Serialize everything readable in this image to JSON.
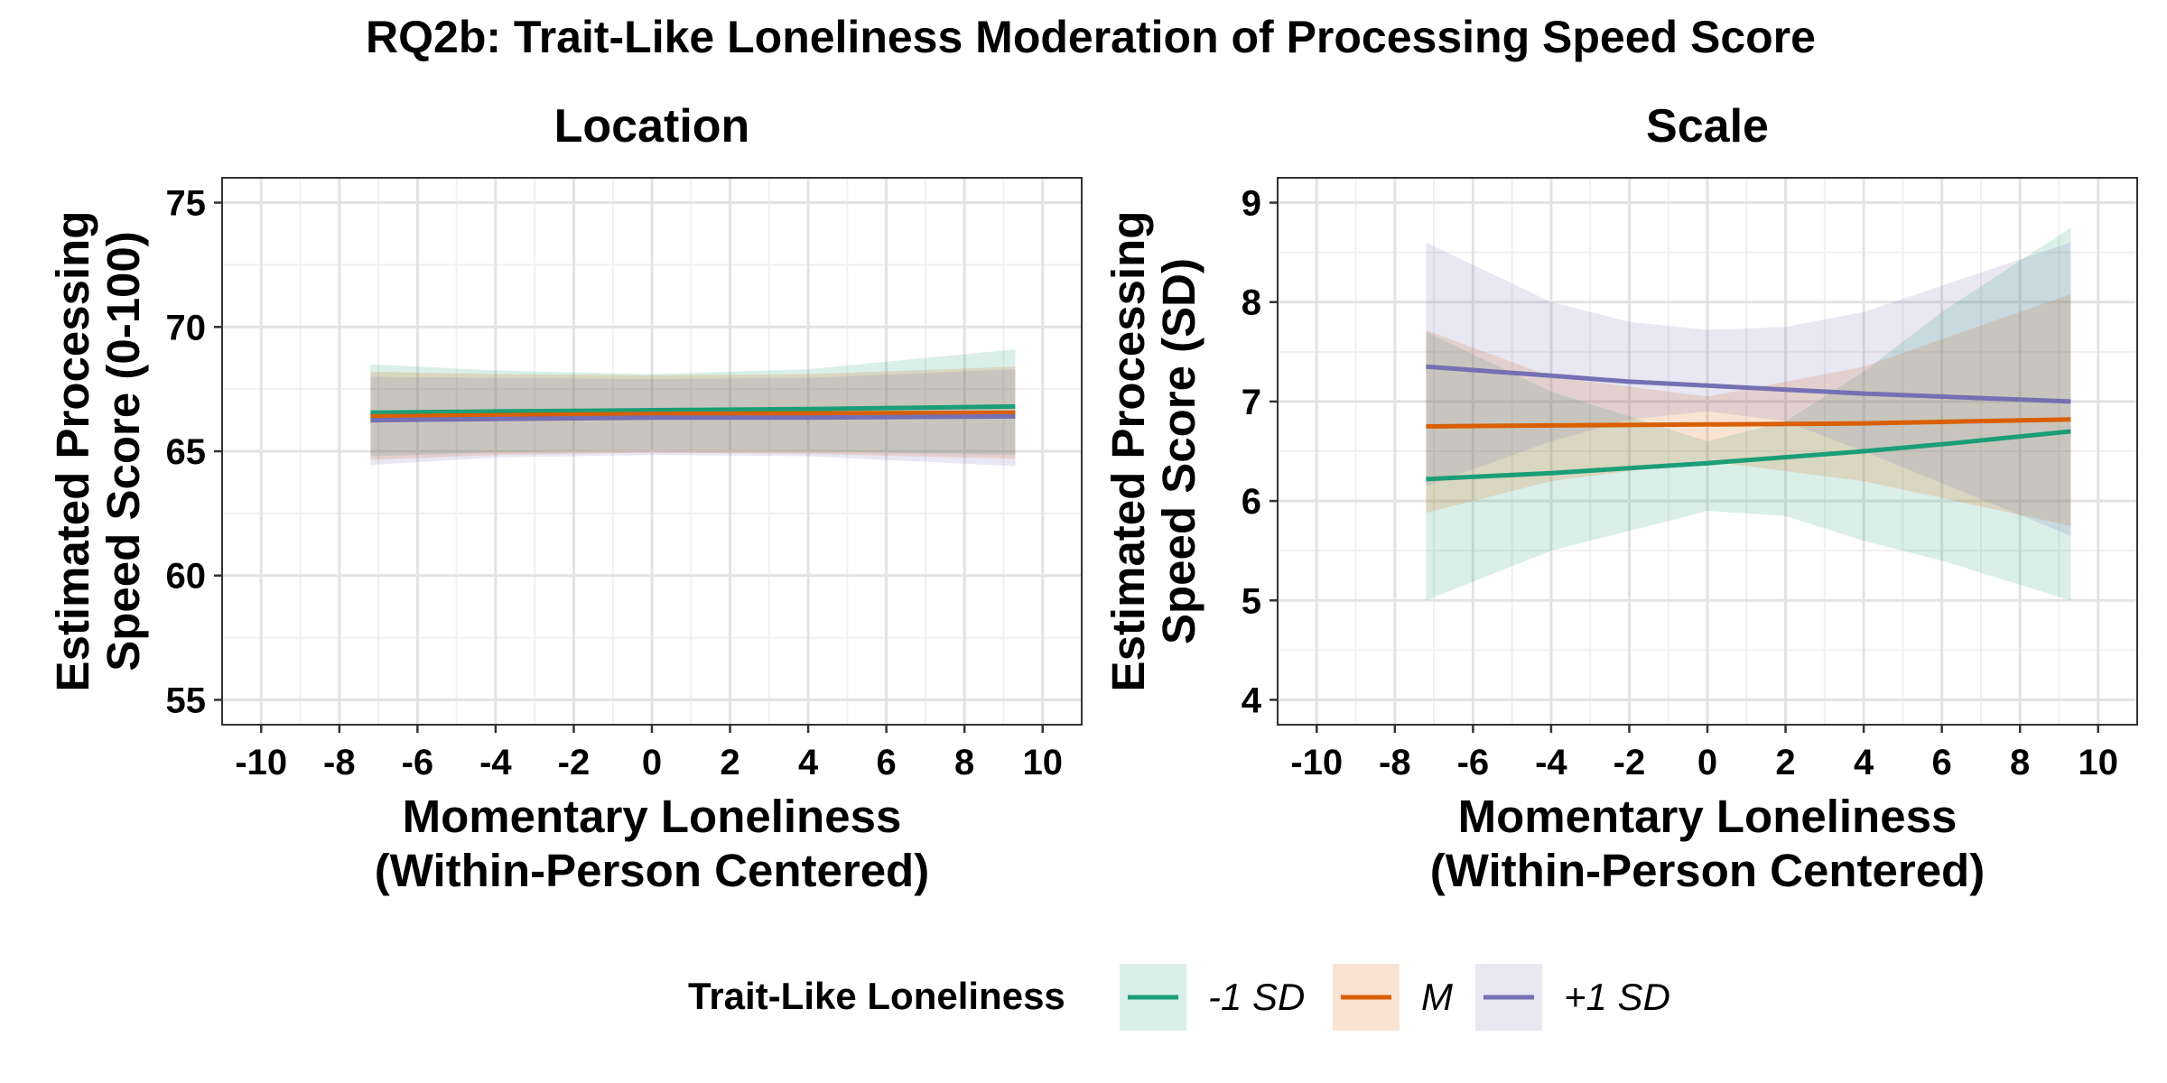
{
  "chart_data": {
    "title": "RQ2b: Trait-Like Loneliness Moderation of Processing Speed Score",
    "type": "line",
    "legend": {
      "title": "Trait-Like Loneliness",
      "position": "bottom",
      "entries": [
        "-1 SD",
        "M",
        "+1 SD"
      ]
    },
    "colors": {
      "-1 SD": "#1b9e77",
      "M": "#d95f02",
      "+1 SD": "#7570b3"
    },
    "panels": [
      {
        "title": "Location",
        "xlabel": "Momentary Loneliness\n(Within-Person Centered)",
        "ylabel": "Estimated Processing\nSpeed Score (0-100)",
        "xlim": [
          -11,
          11
        ],
        "ylim": [
          54,
          76
        ],
        "xticks": [
          -10,
          -8,
          -6,
          -4,
          -2,
          0,
          2,
          4,
          6,
          8,
          10
        ],
        "yticks": [
          55,
          60,
          65,
          70,
          75
        ],
        "grid": true,
        "series": [
          {
            "name": "-1 SD",
            "x": [
              -7.2,
              -4,
              0,
              4,
              9.3
            ],
            "y": [
              66.55,
              66.6,
              66.65,
              66.7,
              66.8
            ],
            "lower": [
              64.8,
              64.95,
              65.05,
              65.0,
              64.85
            ],
            "upper": [
              68.5,
              68.25,
              68.1,
              68.3,
              69.1
            ]
          },
          {
            "name": "M",
            "x": [
              -7.2,
              -4,
              0,
              4,
              9.3
            ],
            "y": [
              66.4,
              66.45,
              66.5,
              66.52,
              66.55
            ],
            "lower": [
              64.65,
              64.85,
              64.95,
              64.9,
              64.7
            ],
            "upper": [
              68.2,
              68.1,
              68.05,
              68.1,
              68.4
            ]
          },
          {
            "name": "+1 SD",
            "x": [
              -7.2,
              -4,
              0,
              4,
              9.3
            ],
            "y": [
              66.25,
              66.3,
              66.35,
              66.35,
              66.4
            ],
            "lower": [
              64.45,
              64.75,
              64.85,
              64.8,
              64.4
            ],
            "upper": [
              68.0,
              67.95,
              67.9,
              67.95,
              68.3
            ]
          }
        ]
      },
      {
        "title": "Scale",
        "xlabel": "Momentary Loneliness\n(Within-Person Centered)",
        "ylabel": "Estimated Processing\nSpeed Score (SD)",
        "xlim": [
          -11,
          11
        ],
        "ylim": [
          3.75,
          9.25
        ],
        "xticks": [
          -10,
          -8,
          -6,
          -4,
          -2,
          0,
          2,
          4,
          6,
          8,
          10
        ],
        "yticks": [
          4,
          5,
          6,
          7,
          8,
          9
        ],
        "grid": true,
        "series": [
          {
            "name": "-1 SD",
            "x": [
              -7.2,
              -4,
              0,
              2,
              4,
              6,
              9.3
            ],
            "y": [
              6.22,
              6.28,
              6.38,
              6.44,
              6.5,
              6.57,
              6.7
            ],
            "lower": [
              5.0,
              5.5,
              5.9,
              5.85,
              5.6,
              5.4,
              5.0
            ],
            "upper": [
              7.7,
              7.1,
              6.6,
              6.8,
              7.3,
              7.9,
              8.75
            ]
          },
          {
            "name": "M",
            "x": [
              -7.2,
              -4,
              0,
              4,
              9.3
            ],
            "y": [
              6.75,
              6.76,
              6.77,
              6.78,
              6.82
            ],
            "lower": [
              5.88,
              6.2,
              6.4,
              6.2,
              5.75
            ],
            "upper": [
              7.72,
              7.25,
              7.05,
              7.35,
              8.08
            ]
          },
          {
            "name": "+1 SD",
            "x": [
              -7.2,
              -4,
              -2,
              0,
              2,
              4,
              9.3
            ],
            "y": [
              7.35,
              7.26,
              7.2,
              7.16,
              7.12,
              7.08,
              7.0
            ],
            "lower": [
              6.15,
              6.6,
              6.82,
              6.9,
              6.8,
              6.5,
              5.65
            ],
            "upper": [
              8.6,
              8.0,
              7.8,
              7.72,
              7.75,
              7.9,
              8.6
            ]
          }
        ]
      }
    ]
  }
}
